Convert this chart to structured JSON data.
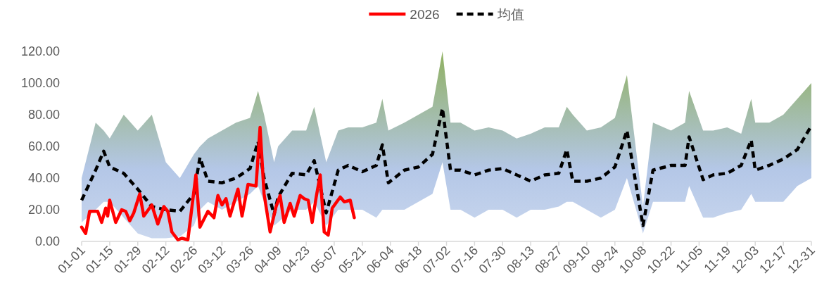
{
  "chart_data": {
    "type": "line",
    "xlim": [
      "--01-01",
      "--12-31"
    ],
    "xticks": [
      {
        "value": "--01-01",
        "label": "01-01"
      },
      {
        "value": "--01-15",
        "label": "01-15"
      },
      {
        "value": "--01-29",
        "label": "01-29"
      },
      {
        "value": "--02-12",
        "label": "02-12"
      },
      {
        "value": "--02-26",
        "label": "02-26"
      },
      {
        "value": "--03-12",
        "label": "03-12"
      },
      {
        "value": "--03-26",
        "label": "03-26"
      },
      {
        "value": "--04-09",
        "label": "04-09"
      },
      {
        "value": "--04-23",
        "label": "04-23"
      },
      {
        "value": "--05-07",
        "label": "05-07"
      },
      {
        "value": "--05-21",
        "label": "05-21"
      },
      {
        "value": "--06-04",
        "label": "06-04"
      },
      {
        "value": "--06-18",
        "label": "06-18"
      },
      {
        "value": "--07-02",
        "label": "07-02"
      },
      {
        "value": "--07-16",
        "label": "07-16"
      },
      {
        "value": "--07-30",
        "label": "07-30"
      },
      {
        "value": "--08-13",
        "label": "08-13"
      },
      {
        "value": "--08-27",
        "label": "08-27"
      },
      {
        "value": "--09-10",
        "label": "09-10"
      },
      {
        "value": "--09-24",
        "label": "09-24"
      },
      {
        "value": "--10-08",
        "label": "10-08"
      },
      {
        "value": "--10-22",
        "label": "10-22"
      },
      {
        "value": "--11-05",
        "label": "11-05"
      },
      {
        "value": "--11-19",
        "label": "11-19"
      },
      {
        "value": "--12-03",
        "label": "12-03"
      },
      {
        "value": "--12-17",
        "label": "12-17"
      },
      {
        "value": "--12-31",
        "label": "12-31"
      }
    ],
    "ylim": [
      0,
      120
    ],
    "yticks": [
      {
        "value": 0,
        "label": "0.00"
      },
      {
        "value": 20,
        "label": "20.00"
      },
      {
        "value": 40,
        "label": "40.00"
      },
      {
        "value": 60,
        "label": "60.00"
      },
      {
        "value": 80,
        "label": "80.00"
      },
      {
        "value": 100,
        "label": "100.00"
      },
      {
        "value": 120,
        "label": "120.00"
      }
    ],
    "grid": false,
    "legend": "top",
    "series": [
      {
        "name": "2026",
        "color": "#ff0000",
        "line_style": "solid",
        "x": [
          "--01-01",
          "--01-03",
          "--01-05",
          "--01-09",
          "--01-11",
          "--01-13",
          "--01-14",
          "--01-15",
          "--01-18",
          "--01-21",
          "--01-23",
          "--01-25",
          "--01-27",
          "--01-30",
          "--02-01",
          "--02-05",
          "--02-08",
          "--02-11",
          "--02-13",
          "--02-15",
          "--02-18",
          "--02-20",
          "--02-23",
          "--02-27",
          "--03-01",
          "--03-05",
          "--03-08",
          "--03-10",
          "--03-12",
          "--03-14",
          "--03-16",
          "--03-20",
          "--03-22",
          "--03-25",
          "--03-29",
          "--03-31",
          "--04-02",
          "--04-05",
          "--04-08",
          "--04-10",
          "--04-12",
          "--04-15",
          "--04-17",
          "--04-20",
          "--04-22",
          "--04-24",
          "--04-26",
          "--04-28",
          "--04-30",
          "--05-02",
          "--05-04",
          "--05-06",
          "--05-10",
          "--05-12",
          "--05-15",
          "--05-17"
        ],
        "values": [
          9,
          5,
          19,
          19,
          12,
          21,
          16,
          26,
          12,
          20,
          19,
          13,
          18,
          30,
          16,
          23,
          11,
          22,
          19,
          6,
          1,
          2,
          1,
          42,
          9,
          19,
          15,
          29,
          23,
          27,
          16,
          33,
          16,
          36,
          35,
          72,
          30,
          6,
          22,
          29,
          12,
          24,
          16,
          29,
          27,
          26,
          12,
          28,
          42,
          6,
          4,
          21,
          28,
          25,
          26,
          15
        ]
      },
      {
        "name": "均值",
        "color": "#000000",
        "line_style": "dashed",
        "x": [
          "--01-01",
          "--01-08",
          "--01-12",
          "--01-15",
          "--01-22",
          "--01-29",
          "--02-05",
          "--02-12",
          "--02-19",
          "--02-26",
          "--03-01",
          "--03-05",
          "--03-12",
          "--03-19",
          "--03-26",
          "--03-30",
          "--04-02",
          "--04-07",
          "--04-09",
          "--04-16",
          "--04-23",
          "--04-27",
          "--05-03",
          "--05-09",
          "--05-14",
          "--05-21",
          "--05-28",
          "--05-31",
          "--06-03",
          "--06-11",
          "--06-18",
          "--06-25",
          "--06-30",
          "--07-04",
          "--07-09",
          "--07-16",
          "--07-23",
          "--07-30",
          "--08-06",
          "--08-13",
          "--08-20",
          "--08-27",
          "--08-31",
          "--09-03",
          "--09-10",
          "--09-17",
          "--09-24",
          "--09-30",
          "--10-08",
          "--10-13",
          "--10-22",
          "--10-29",
          "--10-31",
          "--11-07",
          "--11-12",
          "--11-19",
          "--11-26",
          "--12-01",
          "--12-03",
          "--12-10",
          "--12-17",
          "--12-24",
          "--12-31"
        ],
        "values": [
          26,
          45,
          57,
          47,
          43,
          33,
          22,
          20,
          19,
          30,
          53,
          38,
          37,
          40,
          46,
          63,
          40,
          17,
          28,
          43,
          42,
          51,
          18,
          45,
          48,
          44,
          48,
          61,
          37,
          45,
          47,
          55,
          84,
          45,
          45,
          42,
          45,
          46,
          42,
          38,
          42,
          43,
          58,
          38,
          38,
          40,
          47,
          70,
          10,
          45,
          48,
          48,
          66,
          39,
          42,
          43,
          48,
          64,
          45,
          48,
          52,
          58,
          73
        ],
        "lower": [
          12,
          20,
          25,
          25,
          15,
          5,
          2,
          2,
          3,
          10,
          20,
          25,
          20,
          25,
          30,
          35,
          25,
          10,
          12,
          20,
          20,
          25,
          10,
          20,
          20,
          20,
          15,
          20,
          20,
          20,
          25,
          30,
          50,
          20,
          20,
          15,
          20,
          20,
          15,
          20,
          20,
          22,
          25,
          25,
          20,
          15,
          20,
          40,
          5,
          25,
          25,
          25,
          35,
          15,
          15,
          18,
          20,
          30,
          25,
          25,
          25,
          35,
          40
        ],
        "upper": [
          40,
          75,
          70,
          65,
          80,
          70,
          80,
          50,
          40,
          55,
          60,
          65,
          70,
          75,
          78,
          95,
          80,
          50,
          60,
          70,
          70,
          85,
          50,
          70,
          72,
          72,
          75,
          90,
          70,
          75,
          80,
          85,
          120,
          75,
          75,
          70,
          72,
          70,
          65,
          68,
          72,
          72,
          85,
          80,
          70,
          72,
          78,
          105,
          22,
          75,
          70,
          75,
          95,
          70,
          70,
          72,
          68,
          90,
          75,
          75,
          80,
          90,
          100
        ]
      }
    ]
  }
}
